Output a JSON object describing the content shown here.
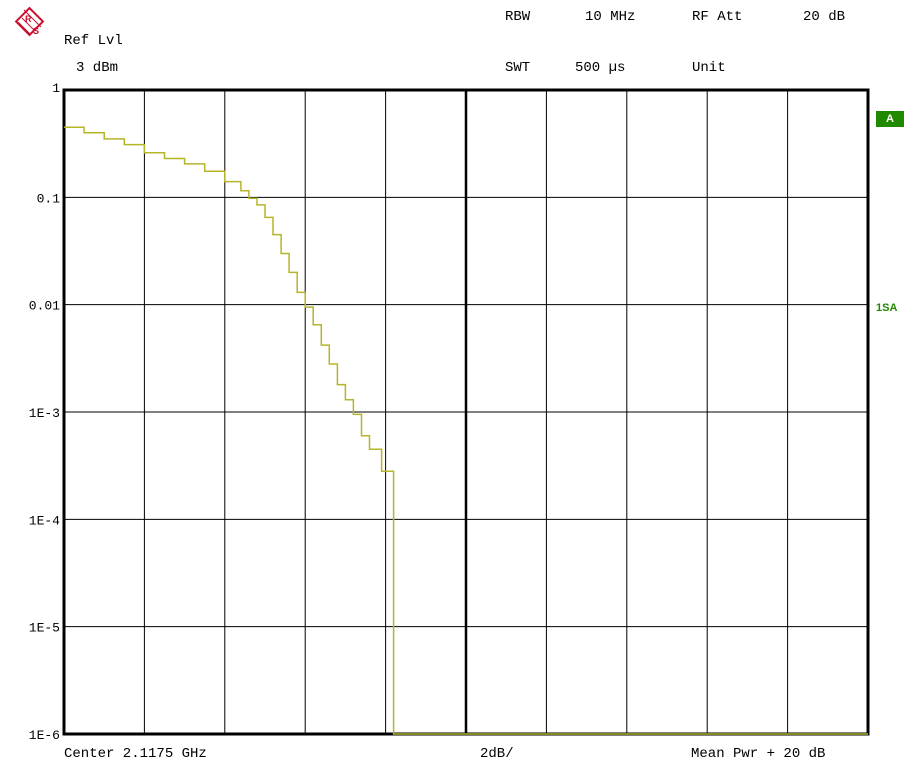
{
  "header": {
    "ref_lvl_label": "Ref Lvl",
    "ref_lvl_value": "3 dBm",
    "rbw_label": "RBW",
    "rbw_value": "10 MHz",
    "rf_att_label": "RF Att",
    "rf_att_value": "20 dB",
    "swt_label": "SWT",
    "swt_value": "500 µs",
    "unit_label": "Unit"
  },
  "footer": {
    "center": "Center 2.1175 GHz",
    "scale": "2dB/",
    "mean_pwr": "Mean Pwr + 20 dB"
  },
  "badges": {
    "trace_a": "A",
    "one_sa": "1SA",
    "trace_color": "#1f8a00"
  },
  "logo": {
    "text": "RS",
    "color": "#c8102e"
  },
  "chart_data": {
    "type": "line",
    "y_scale": "log",
    "ylim": [
      1e-06,
      1
    ],
    "y_tick_labels": [
      "1",
      "0.1",
      "0.01",
      "1E-3",
      "1E-4",
      "1E-5",
      "1E-6"
    ],
    "x_divisions": 10,
    "x_units": "dB",
    "x_range_db": [
      0,
      20
    ],
    "grid": true,
    "trace_color": "#b5b52a",
    "series": [
      {
        "values_x_db": [
          0,
          0.5,
          1.0,
          1.5,
          2.0,
          2.5,
          3.0,
          3.5,
          4.0,
          4.4,
          4.6,
          4.8,
          5.0,
          5.2,
          5.4,
          5.6,
          5.8,
          6.0,
          6.2,
          6.4,
          6.6,
          6.8,
          7.0,
          7.2,
          7.4,
          7.6,
          7.9,
          8.2,
          8.2,
          20
        ],
        "values_y": [
          0.45,
          0.4,
          0.35,
          0.31,
          0.26,
          0.23,
          0.205,
          0.175,
          0.14,
          0.115,
          0.098,
          0.085,
          0.065,
          0.045,
          0.03,
          0.02,
          0.013,
          0.0095,
          0.0065,
          0.0042,
          0.0028,
          0.0018,
          0.0013,
          0.00095,
          0.0006,
          0.00045,
          0.00028,
          0.0002,
          1e-06,
          1e-06
        ]
      }
    ]
  }
}
